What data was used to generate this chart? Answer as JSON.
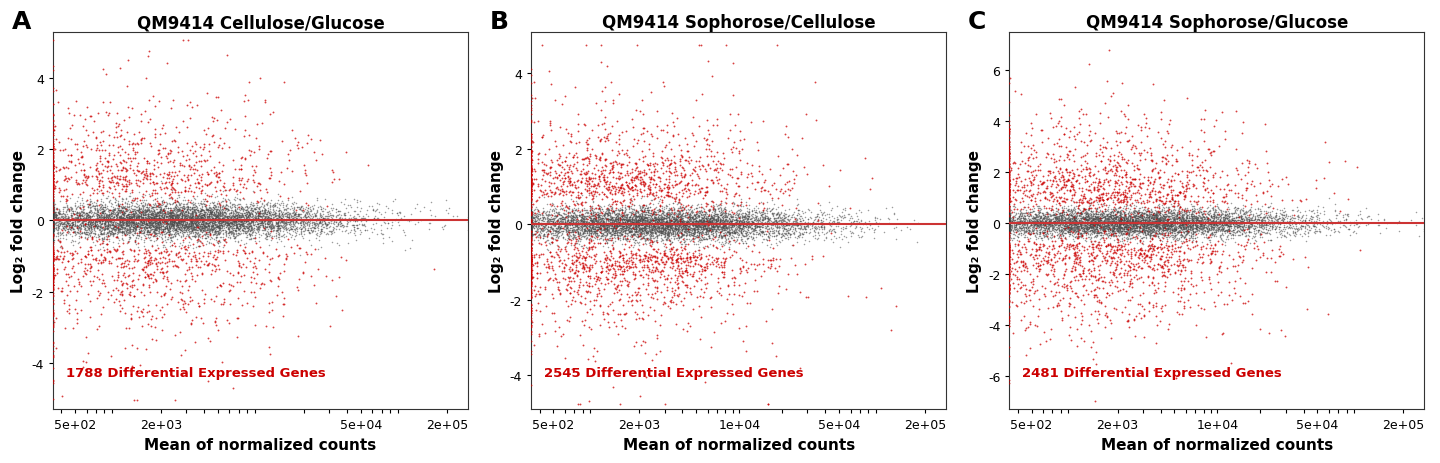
{
  "panels": [
    {
      "label": "A",
      "title": "QM9414 Cellulose/Glucose",
      "deg_text": "1788 Differential Expressed Genes",
      "xlim": [
        350,
        280000
      ],
      "ylim": [
        -5.3,
        5.3
      ],
      "yticks": [
        -4,
        -2,
        0,
        2,
        4
      ],
      "xticks": [
        500,
        2000,
        50000,
        200000
      ],
      "xticklabels": [
        "5e+02",
        "2e+03",
        "5e+04",
        "2e+05"
      ],
      "n_total": 9500,
      "n_sig": 1788,
      "seed": 42,
      "clip_y": 5.05,
      "clip_y_neg": -5.05,
      "y_spread_sig": 1.5,
      "y_spread_ns": 0.25
    },
    {
      "label": "B",
      "title": "QM9414 Sophorose/Cellulose",
      "deg_text": "2545 Differential Expressed Genes",
      "xlim": [
        350,
        280000
      ],
      "ylim": [
        -4.9,
        5.1
      ],
      "yticks": [
        -4,
        -2,
        0,
        2,
        4
      ],
      "xticks": [
        500,
        2000,
        10000,
        50000,
        200000
      ],
      "xticklabels": [
        "5e+02",
        "2e+03",
        "1e+04",
        "5e+04",
        "2e+05"
      ],
      "n_total": 9500,
      "n_sig": 2545,
      "seed": 123,
      "clip_y": 4.75,
      "clip_y_neg": -4.75,
      "y_spread_sig": 1.1,
      "y_spread_ns": 0.22
    },
    {
      "label": "C",
      "title": "QM9414 Sophorose/Glucose",
      "deg_text": "2481 Differential Expressed Genes",
      "xlim": [
        350,
        280000
      ],
      "ylim": [
        -7.3,
        7.5
      ],
      "yticks": [
        -6,
        -4,
        -2,
        0,
        2,
        4,
        6
      ],
      "xticks": [
        500,
        2000,
        10000,
        50000,
        200000
      ],
      "xticklabels": [
        "5e+02",
        "2e+03",
        "1e+04",
        "5e+04",
        "2e+05"
      ],
      "n_total": 9500,
      "n_sig": 2481,
      "seed": 77,
      "clip_y": 7.1,
      "clip_y_neg": -7.1,
      "y_spread_sig": 1.9,
      "y_spread_ns": 0.28
    }
  ],
  "background_color": "#ffffff",
  "dot_color_sig": "#cc0000",
  "dot_color_ns": "#4d4d4d",
  "line_color": "#cc3333",
  "xlabel": "Mean of normalized counts",
  "ylabel": "Log₂ fold change",
  "label_fontsize": 11,
  "title_fontsize": 12,
  "annot_fontsize": 9.5,
  "tick_fontsize": 9,
  "dot_size_sig": 1.8,
  "dot_size_ns": 1.2,
  "dot_alpha_sig": 0.75,
  "dot_alpha_ns": 0.55
}
